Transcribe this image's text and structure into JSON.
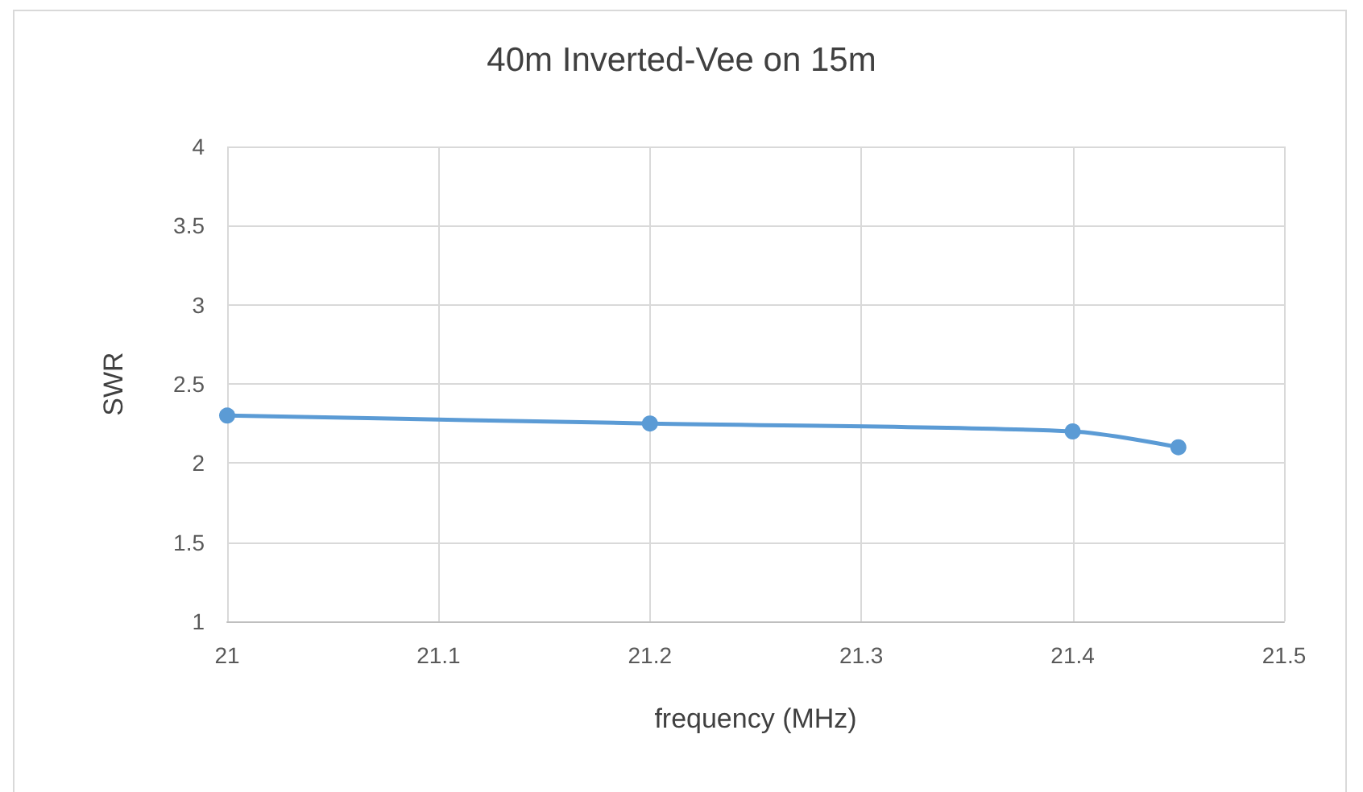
{
  "chart_data": {
    "type": "line",
    "title": "40m Inverted-Vee on 15m",
    "xlabel": "frequency (MHz)",
    "ylabel": "SWR",
    "x": [
      21,
      21.2,
      21.4,
      21.45
    ],
    "series": [
      {
        "color": "#5b9bd5",
        "values": [
          2.3,
          2.25,
          2.2,
          2.1
        ]
      }
    ],
    "xlim": [
      21,
      21.5
    ],
    "xticks": [
      21,
      21.1,
      21.2,
      21.3,
      21.4,
      21.5
    ],
    "ylim": [
      1,
      4
    ],
    "yticks": [
      1,
      1.5,
      2,
      2.5,
      3,
      3.5,
      4
    ],
    "grid": true,
    "marker": "circle",
    "line_style": "solid"
  }
}
